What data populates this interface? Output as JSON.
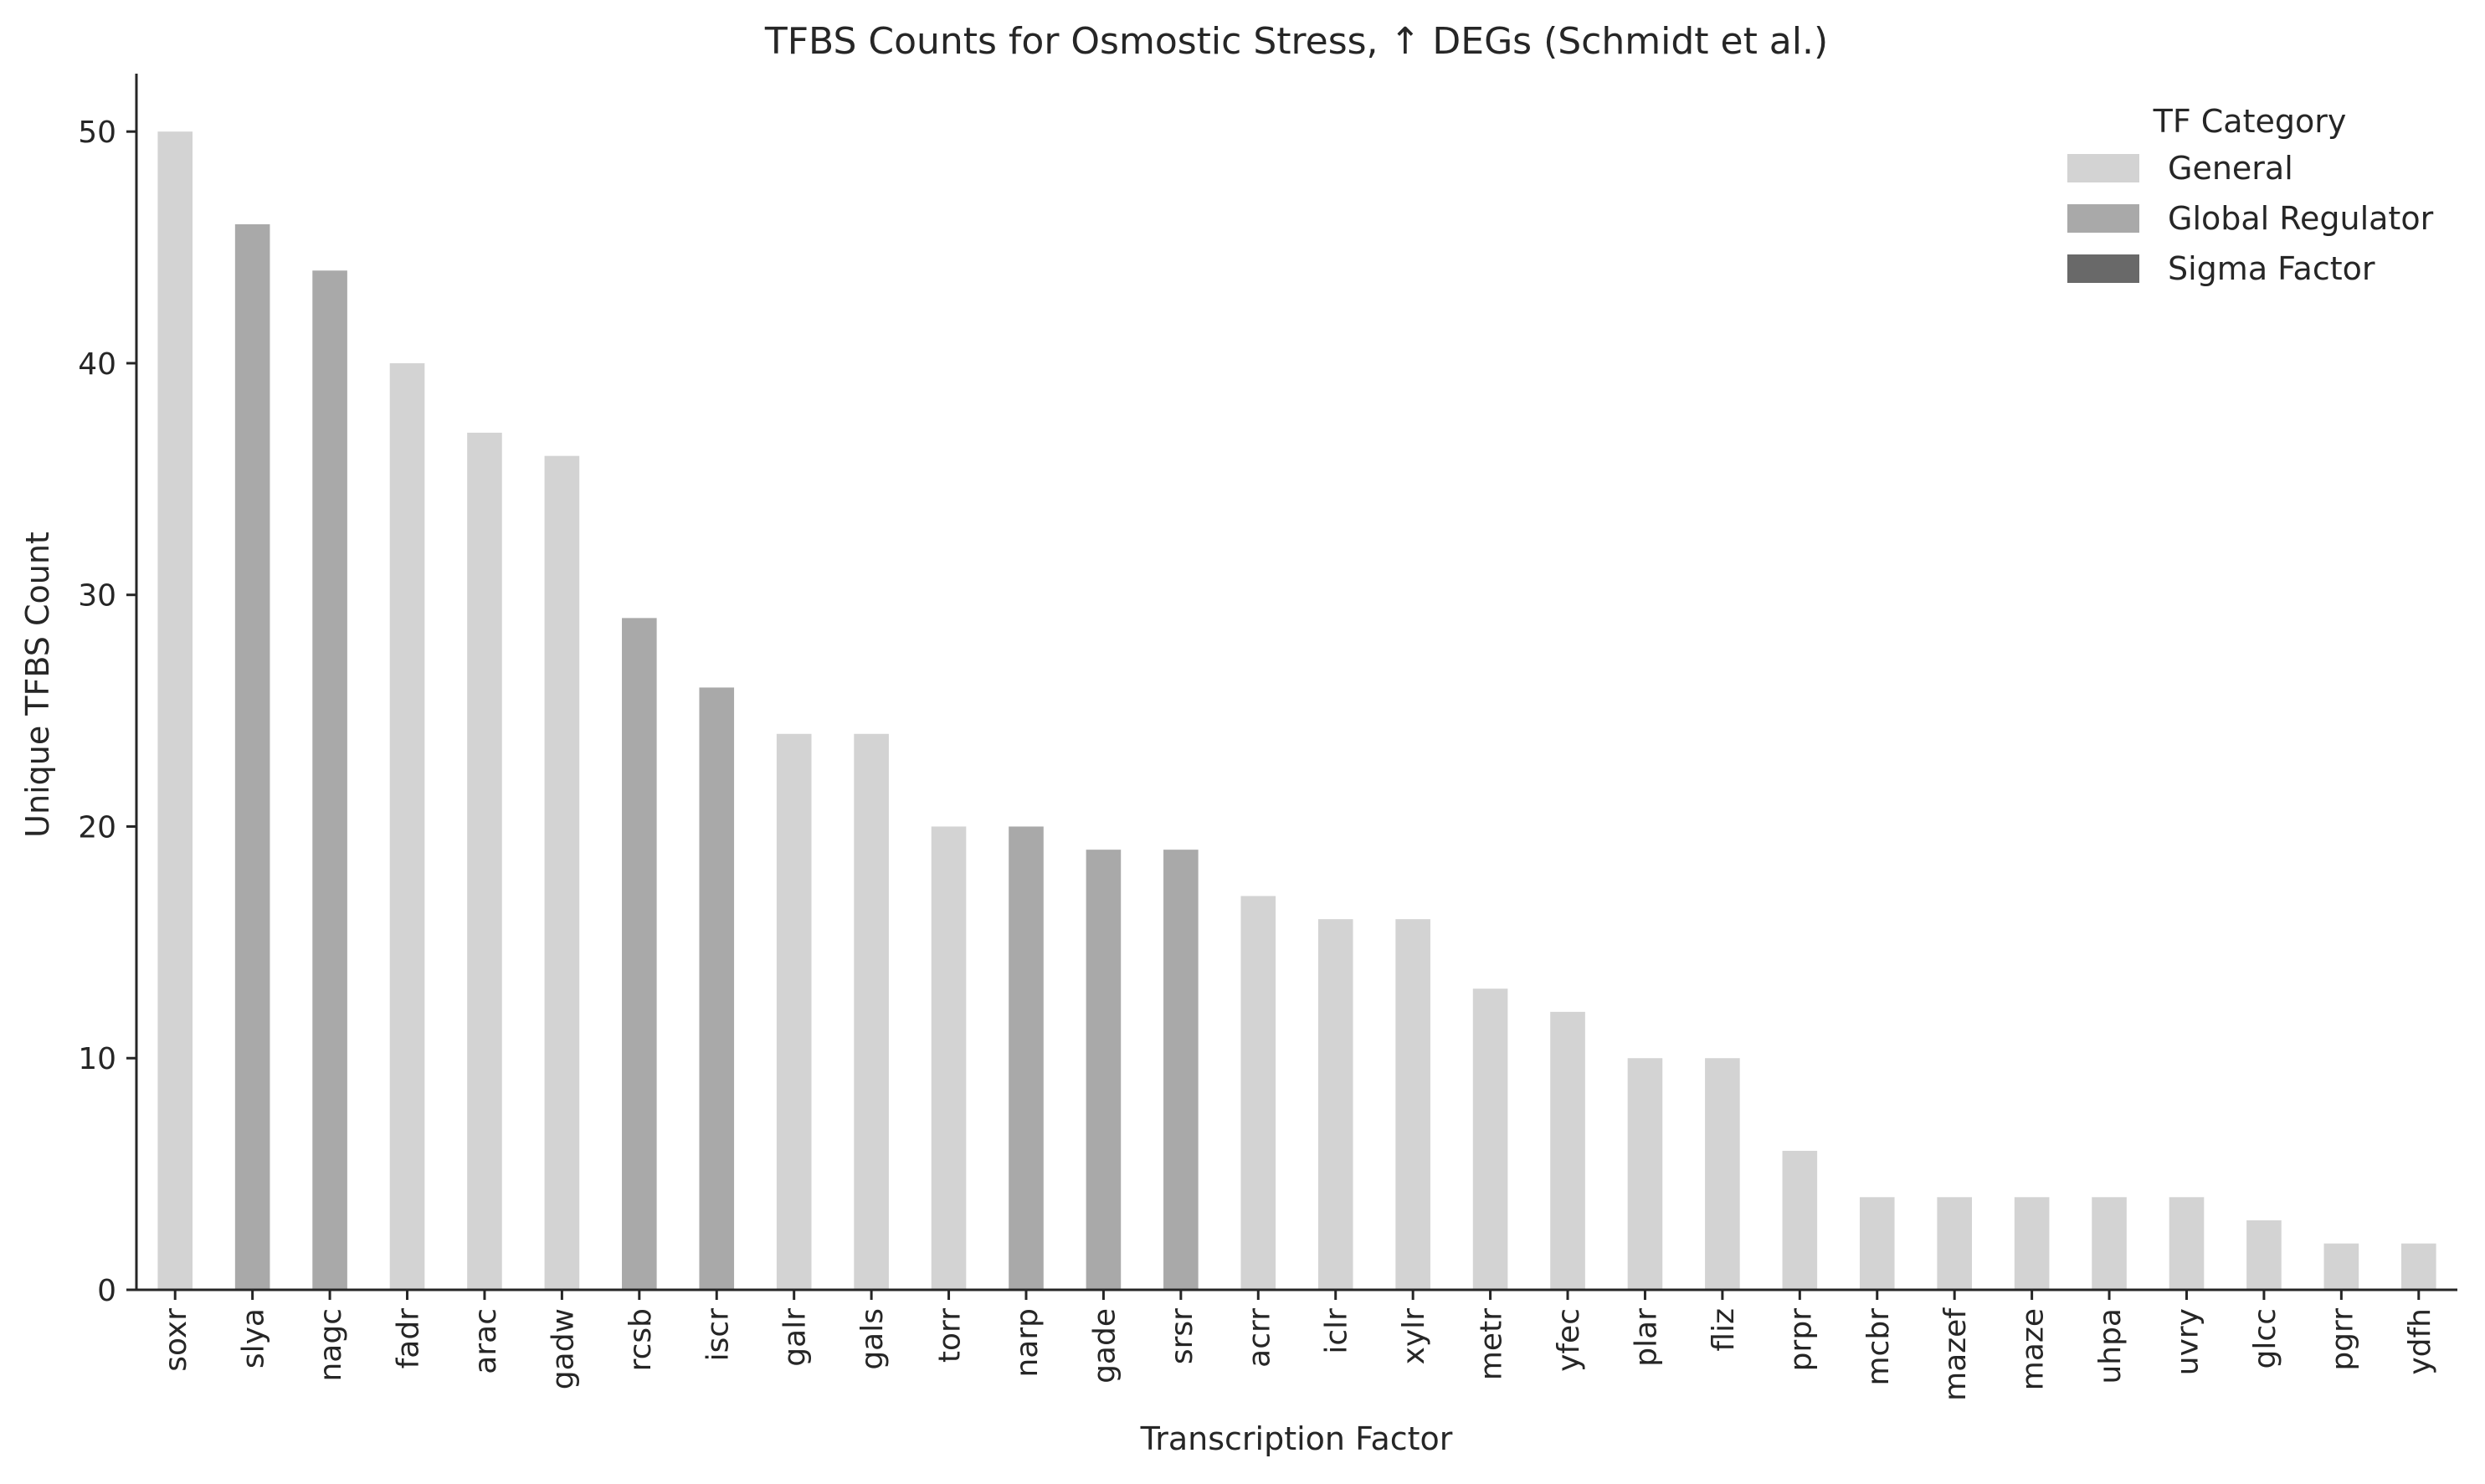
{
  "chart_data": {
    "type": "bar",
    "title": "TFBS Counts for Osmostic Stress, ↑ DEGs (Schmidt et al.)",
    "xlabel": "Transcription Factor",
    "ylabel": "Unique TFBS Count",
    "ylim": [
      0,
      52.5
    ],
    "yticks": [
      0,
      10,
      20,
      30,
      40,
      50
    ],
    "grid": false,
    "legend": {
      "title": "TF Category",
      "placement": "top-right",
      "entries": [
        {
          "name": "General",
          "color": "#d3d3d3"
        },
        {
          "name": "Global Regulator",
          "color": "#a9a9a9"
        },
        {
          "name": "Sigma Factor",
          "color": "#696969"
        }
      ]
    },
    "categories": [
      "soxr",
      "slya",
      "nagc",
      "fadr",
      "arac",
      "gadw",
      "rcsb",
      "iscr",
      "galr",
      "gals",
      "torr",
      "narp",
      "gade",
      "srsr",
      "acrr",
      "iclr",
      "xylr",
      "metr",
      "yfec",
      "plar",
      "fliz",
      "prpr",
      "mcbr",
      "mazef",
      "maze",
      "uhpa",
      "uvry",
      "glcc",
      "pgrr",
      "ydfh"
    ],
    "values": [
      50,
      46,
      44,
      40,
      37,
      36,
      29,
      26,
      24,
      24,
      20,
      20,
      19,
      19,
      17,
      16,
      16,
      13,
      12,
      10,
      10,
      6,
      4,
      4,
      4,
      4,
      4,
      3,
      2,
      2
    ],
    "bar_category": [
      "General",
      "Global Regulator",
      "Global Regulator",
      "General",
      "General",
      "General",
      "Global Regulator",
      "Global Regulator",
      "General",
      "General",
      "General",
      "Global Regulator",
      "Global Regulator",
      "Global Regulator",
      "General",
      "General",
      "General",
      "General",
      "General",
      "General",
      "General",
      "General",
      "General",
      "General",
      "General",
      "General",
      "General",
      "General",
      "General",
      "General"
    ]
  }
}
